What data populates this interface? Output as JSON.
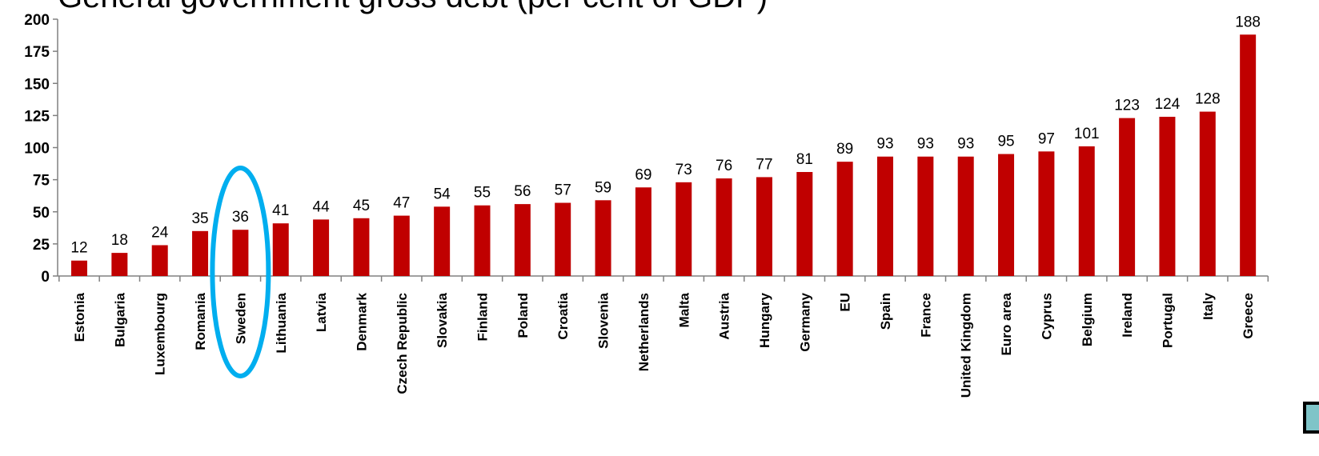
{
  "chart_data": {
    "type": "bar",
    "title": "General government gross debt (per cent of GDP)",
    "categories": [
      "Estonia",
      "Bulgaria",
      "Luxembourg",
      "Romania",
      "Sweden",
      "Lithuania",
      "Latvia",
      "Denmark",
      "Czech Republic",
      "Slovakia",
      "Finland",
      "Poland",
      "Croatia",
      "Slovenia",
      "Netherlands",
      "Malta",
      "Austria",
      "Hungary",
      "Germany",
      "EU",
      "Spain",
      "France",
      "United Kingdom",
      "Euro area",
      "Cyprus",
      "Belgium",
      "Ireland",
      "Portugal",
      "Italy",
      "Greece"
    ],
    "values": [
      12,
      18,
      24,
      35,
      36,
      41,
      44,
      45,
      47,
      54,
      55,
      56,
      57,
      59,
      69,
      73,
      76,
      77,
      81,
      89,
      93,
      93,
      93,
      95,
      97,
      101,
      123,
      124,
      128,
      188
    ],
    "ylim": [
      0,
      200
    ],
    "yticks": [
      0,
      25,
      50,
      75,
      100,
      125,
      150,
      175,
      200
    ],
    "xlabel": "",
    "ylabel": "",
    "grid": false,
    "bar_color": "#c00000",
    "highlight": {
      "category": "Sweden",
      "color": "#00aeef"
    }
  }
}
